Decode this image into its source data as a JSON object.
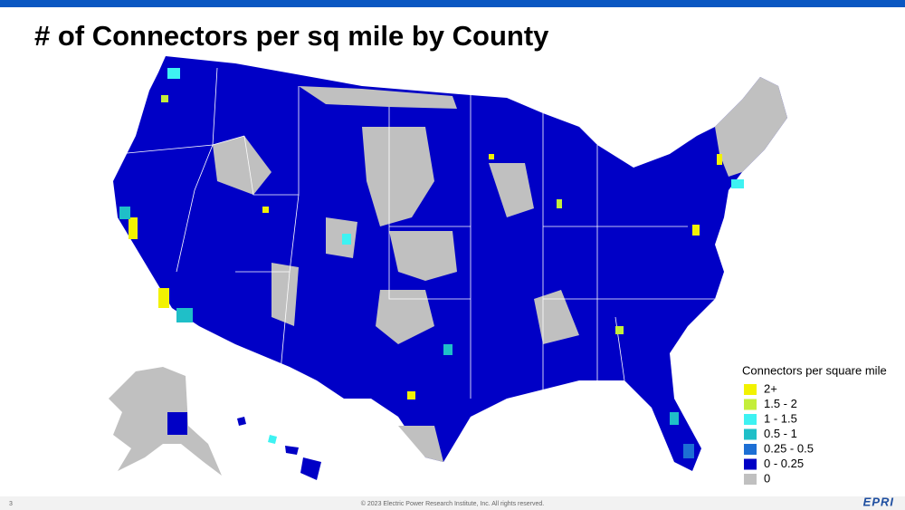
{
  "header": {
    "title": "# of Connectors per sq mile by County"
  },
  "legend": {
    "title": "Connectors per square mile",
    "items": [
      {
        "label": "2+",
        "color": "#f2f200"
      },
      {
        "label": "1.5 - 2",
        "color": "#c4ee3a"
      },
      {
        "label": "1 - 1.5",
        "color": "#3ef2f2"
      },
      {
        "label": "0.5 - 1",
        "color": "#1fbfc8"
      },
      {
        "label": "0.25 - 0.5",
        "color": "#1d6fd4"
      },
      {
        "label": "0 - 0.25",
        "color": "#0000c6"
      },
      {
        "label": "0",
        "color": "#c0c0c0"
      }
    ]
  },
  "footer": {
    "page": "3",
    "copyright": "© 2023 Electric Power Research Institute, Inc. All rights reserved.",
    "logo": "EPRI"
  }
}
